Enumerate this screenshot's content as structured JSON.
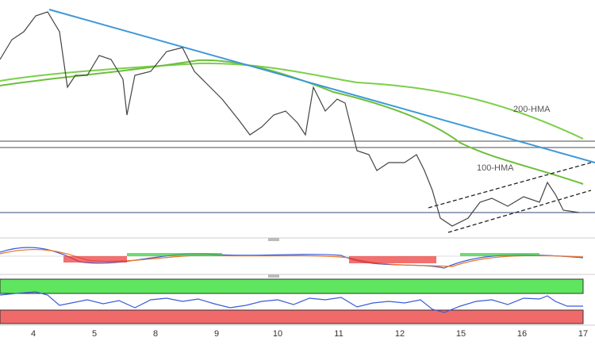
{
  "chart_data": {
    "type": "candlestick",
    "categories": [
      "4",
      "5",
      "8",
      "9",
      "10",
      "11",
      "12",
      "15",
      "16",
      "17"
    ],
    "annotations": [
      "200-HMA",
      "100-HMA"
    ]
  }
}
